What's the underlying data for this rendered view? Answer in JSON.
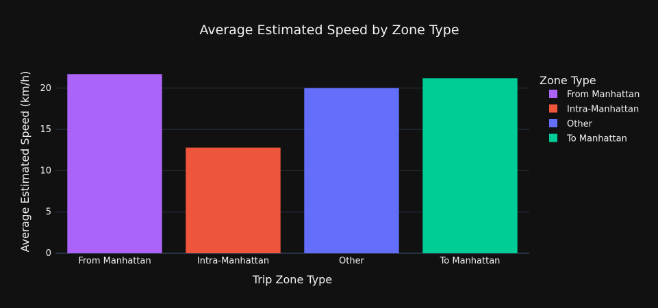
{
  "colors": {
    "background": "#111111",
    "grid": "#283442",
    "text": "#f2f2f2"
  },
  "chart_data": {
    "type": "bar",
    "title": "Average Estimated Speed by Zone Type",
    "xlabel": "Trip Zone Type",
    "ylabel": "Average Estimated Speed (km/h)",
    "categories": [
      "From Manhattan",
      "Intra-Manhattan",
      "Other",
      "To Manhattan"
    ],
    "values": [
      21.7,
      12.8,
      20.0,
      21.2
    ],
    "colors": [
      "#ab63fa",
      "#ef553b",
      "#636efa",
      "#00cc96"
    ],
    "ylim": [
      0,
      22.8
    ],
    "yticks": [
      0,
      5,
      10,
      15,
      20
    ],
    "grid": true,
    "legend": {
      "title": "Zone Type",
      "placement": "right",
      "entries": [
        "From Manhattan",
        "Intra-Manhattan",
        "Other",
        "To Manhattan"
      ]
    }
  }
}
